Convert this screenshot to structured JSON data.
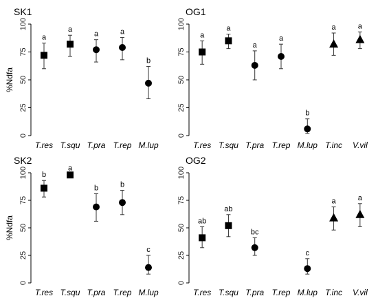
{
  "figure": {
    "ylabel": "%Ndfa"
  },
  "chart_data": [
    {
      "type": "scatter",
      "title": "SK1",
      "ylabel": "%Ndfa",
      "ylim": [
        0,
        100
      ],
      "yticks": [
        0,
        25,
        50,
        75,
        100
      ],
      "categories": [
        "T.res",
        "T.squ",
        "T.pra",
        "T.rep",
        "M.lup"
      ],
      "values": [
        72,
        82,
        77,
        79,
        47
      ],
      "errors_low": [
        60,
        71,
        66,
        68,
        33
      ],
      "errors_high": [
        83,
        90,
        86,
        88,
        62
      ],
      "markers": [
        "square",
        "square",
        "circle",
        "circle",
        "circle"
      ],
      "letters": [
        "a",
        "a",
        "a",
        "a",
        "b"
      ]
    },
    {
      "type": "scatter",
      "title": "OG1",
      "ylabel": "",
      "ylim": [
        0,
        100
      ],
      "yticks": [
        0,
        25,
        50,
        75,
        100
      ],
      "categories": [
        "T.res",
        "T.squ",
        "T.pra",
        "T.rep",
        "M.lup",
        "T.inc",
        "V.vil"
      ],
      "values": [
        75,
        85,
        63,
        71,
        6,
        82,
        86
      ],
      "errors_low": [
        64,
        78,
        50,
        60,
        2,
        72,
        78
      ],
      "errors_high": [
        85,
        91,
        76,
        82,
        15,
        92,
        93
      ],
      "markers": [
        "square",
        "square",
        "circle",
        "circle",
        "circle",
        "triangle",
        "triangle"
      ],
      "letters": [
        "a",
        "a",
        "a",
        "a",
        "b",
        "a",
        "a"
      ]
    },
    {
      "type": "scatter",
      "title": "SK2",
      "ylabel": "%Ndfa",
      "ylim": [
        0,
        100
      ],
      "yticks": [
        0,
        25,
        50,
        75,
        100
      ],
      "categories": [
        "T.res",
        "T.squ",
        "T.pra",
        "T.rep",
        "M.lup"
      ],
      "values": [
        86,
        98,
        69,
        73,
        14
      ],
      "errors_low": [
        78,
        97,
        56,
        62,
        8
      ],
      "errors_high": [
        93,
        99,
        81,
        84,
        25
      ],
      "markers": [
        "square",
        "square",
        "circle",
        "circle",
        "circle"
      ],
      "letters": [
        "b",
        "a",
        "b",
        "b",
        "c"
      ]
    },
    {
      "type": "scatter",
      "title": "OG2",
      "ylabel": "",
      "ylim": [
        0,
        100
      ],
      "yticks": [
        0,
        25,
        50,
        75,
        100
      ],
      "categories": [
        "T.res",
        "T.squ",
        "T.pra",
        "T.rep",
        "M.lup",
        "T.inc",
        "V.vil"
      ],
      "values": [
        41,
        52,
        32,
        null,
        13,
        59,
        62
      ],
      "errors_low": [
        32,
        42,
        25,
        null,
        8,
        48,
        51
      ],
      "errors_high": [
        51,
        62,
        41,
        null,
        22,
        69,
        72
      ],
      "markers": [
        "square",
        "square",
        "circle",
        "circle",
        "circle",
        "triangle",
        "triangle"
      ],
      "letters": [
        "ab",
        "ab",
        "bc",
        "",
        "c",
        "a",
        "a"
      ]
    }
  ]
}
